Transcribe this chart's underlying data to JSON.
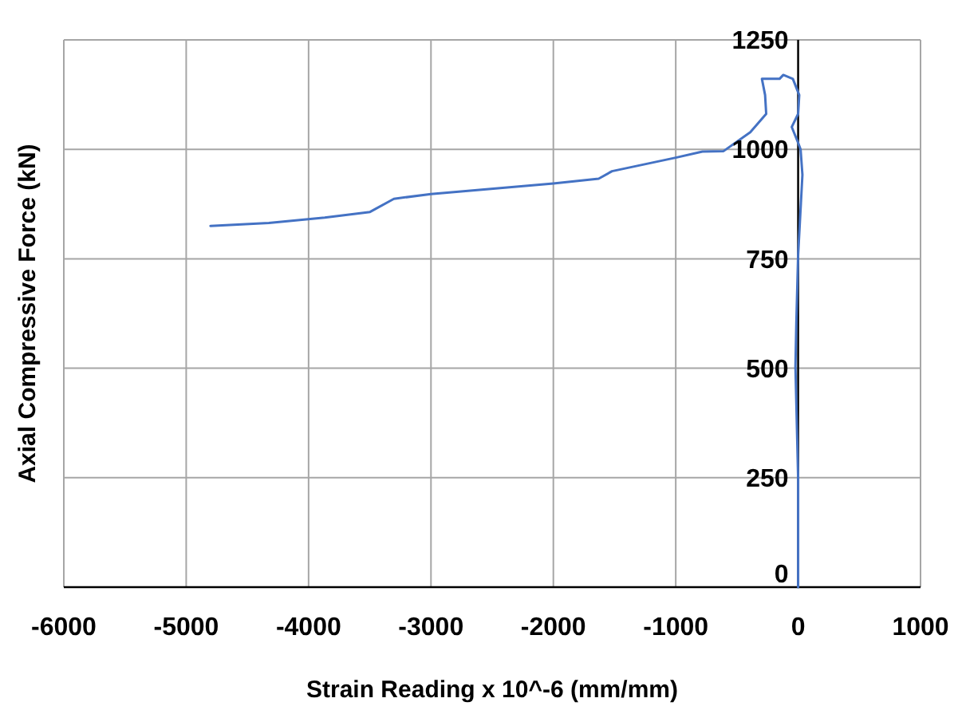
{
  "chart_data": {
    "type": "line",
    "xlabel": "Strain Reading x 10^-6 (mm/mm)",
    "ylabel": "Axial Compressive Force (kN)",
    "xlim": [
      -6000,
      1000
    ],
    "xticks": [
      -6000,
      -5000,
      -4000,
      -3000,
      -2000,
      -1000,
      0,
      1000
    ],
    "ylim": [
      0,
      1250
    ],
    "yticks": [
      0,
      250,
      500,
      750,
      1000,
      1250
    ],
    "grid": true,
    "marker": "none",
    "line_style": "solid",
    "series": [
      {
        "color": "#4472c4",
        "x": [
          0,
          0,
          -22,
          -15,
          0,
          35,
          20,
          0,
          -52,
          0,
          9,
          -43,
          -121,
          -152,
          -296,
          -270,
          -261,
          -391,
          -609,
          -782,
          -1000,
          -1521,
          -1630,
          -2000,
          -3000,
          -3303,
          -3498,
          -3868,
          -4325,
          -4802
        ],
        "values": [
          0,
          250,
          504,
          600,
          759,
          942,
          1000,
          1015,
          1051,
          1081,
          1124,
          1161,
          1170,
          1161,
          1161,
          1124,
          1081,
          1039,
          996,
          995,
          981,
          950,
          933,
          922,
          898,
          887,
          857,
          844,
          832,
          825
        ]
      }
    ]
  }
}
